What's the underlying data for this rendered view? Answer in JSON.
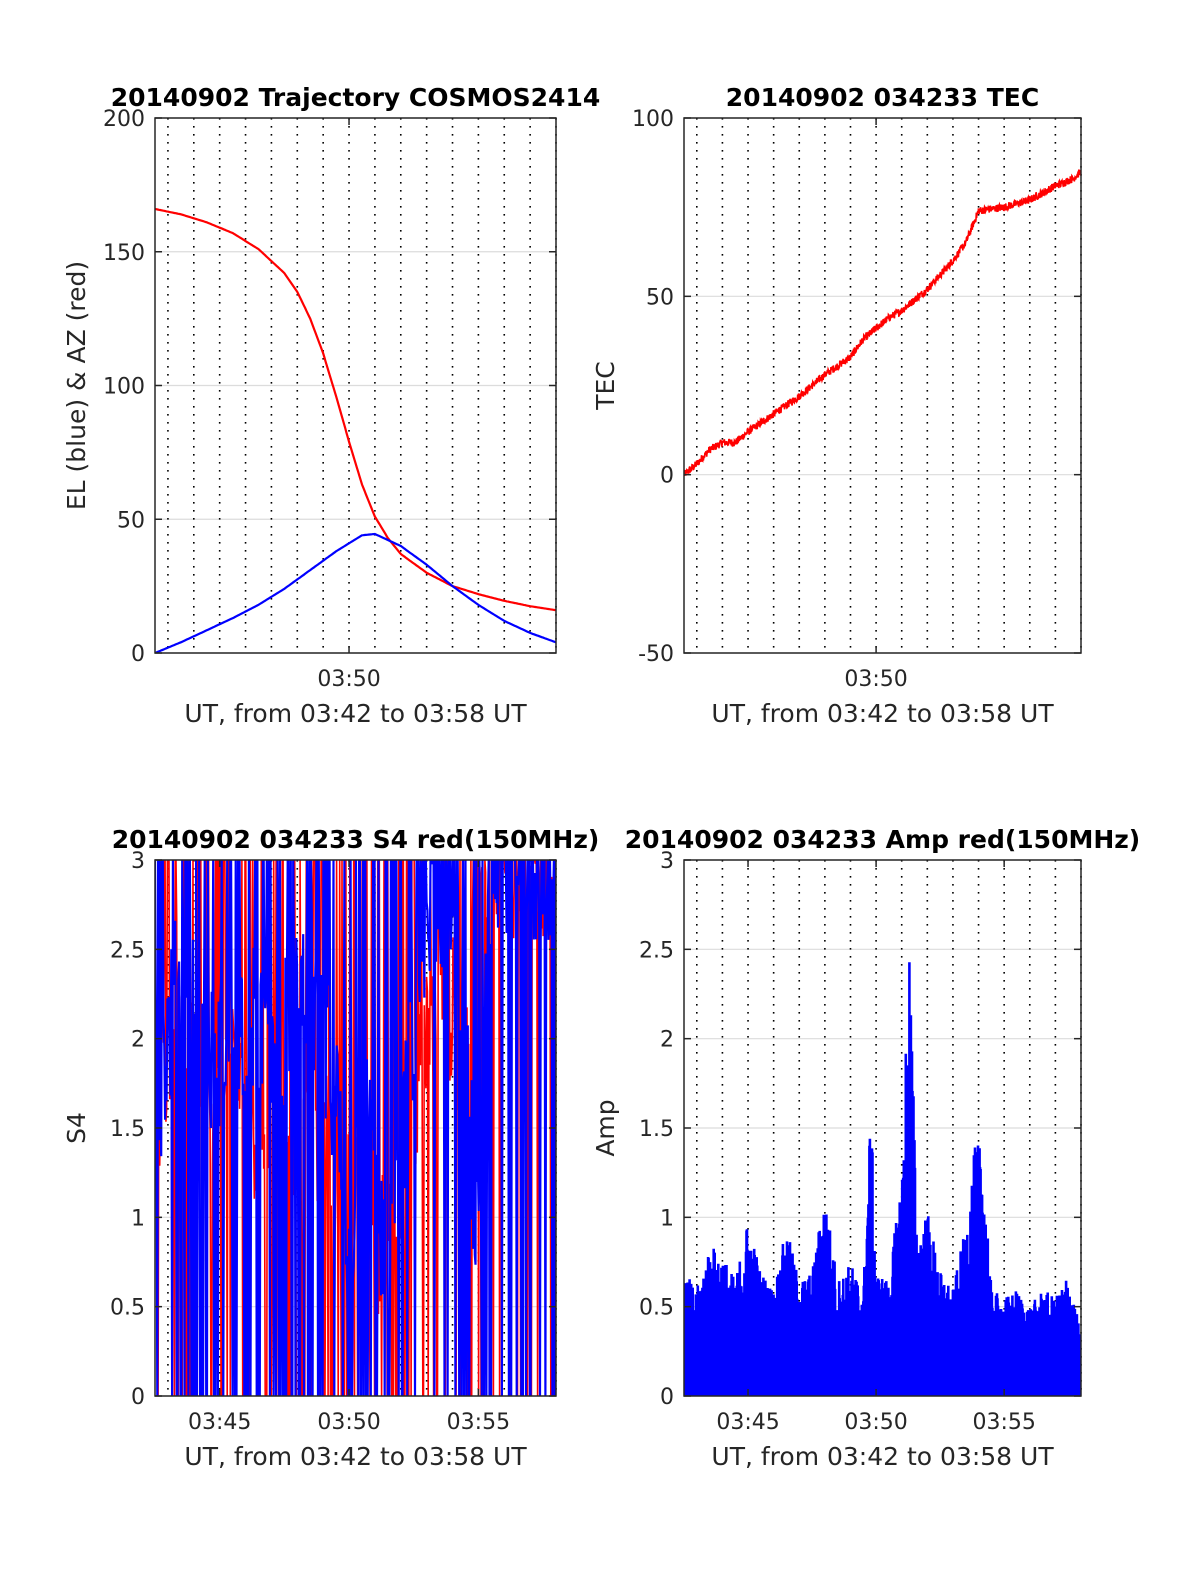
{
  "chart_data": [
    {
      "type": "line",
      "title": "20140902 Trajectory COSMOS2414",
      "xlabel": "UT, from 03:42 to 03:58 UT",
      "ylabel": "EL (blue) & AZ (red)",
      "xlim_minutes": [
        222.5,
        238.0
      ],
      "ylim": [
        0,
        200
      ],
      "yticks": [
        "0",
        "50",
        "100",
        "150",
        "200"
      ],
      "xticks": [
        {
          "t": 230,
          "label": "03:50"
        }
      ],
      "grid": true,
      "series": [
        {
          "color": "#ff0000",
          "x": [
            222.5,
            223.5,
            224.5,
            225.5,
            226.5,
            227.5,
            228.0,
            228.5,
            229.0,
            229.5,
            230.0,
            230.5,
            231.0,
            231.5,
            232.0,
            233.0,
            234.0,
            235.0,
            236.0,
            237.0,
            238.0
          ],
          "y": [
            166,
            164,
            161,
            157,
            151,
            142,
            135,
            125,
            112,
            96,
            79,
            63,
            51,
            43,
            37,
            30,
            25,
            22,
            19.5,
            17.5,
            16
          ]
        },
        {
          "color": "#0000ff",
          "x": [
            222.5,
            223.5,
            224.5,
            225.5,
            226.5,
            227.5,
            228.5,
            229.5,
            230.0,
            230.5,
            231.0,
            232.0,
            233.0,
            234.0,
            235.0,
            236.0,
            237.0,
            238.0
          ],
          "y": [
            0,
            4,
            8.5,
            13,
            18,
            24,
            31,
            38,
            41,
            44,
            44.5,
            40,
            33,
            25,
            18,
            12,
            7.5,
            4
          ]
        }
      ]
    },
    {
      "type": "line",
      "title": "20140902 034233 TEC",
      "xlabel": "UT, from 03:42 to 03:58 UT",
      "ylabel": "TEC",
      "xlim_minutes": [
        222.5,
        238.0
      ],
      "ylim": [
        -50,
        100
      ],
      "yticks": [
        "-50",
        "0",
        "50",
        "100"
      ],
      "xticks": [
        {
          "t": 230,
          "label": "03:50"
        }
      ],
      "grid": true,
      "series": [
        {
          "color": "#ff0000",
          "x": [
            222.5,
            223.0,
            223.5,
            224.0,
            224.5,
            225.0,
            226.0,
            227.0,
            228.0,
            229.0,
            229.5,
            230.0,
            230.5,
            231.0,
            232.0,
            233.0,
            233.5,
            234.0,
            235.0,
            236.0,
            237.0,
            237.7,
            238.0
          ],
          "y": [
            0,
            3,
            7,
            9,
            9,
            12,
            17,
            22,
            28,
            33,
            38,
            41,
            44,
            46,
            52,
            60,
            65,
            74,
            75,
            77,
            81,
            83,
            85
          ]
        }
      ]
    },
    {
      "type": "line",
      "title": "20140902 034233 S4 red(150MHz)",
      "xlabel": "UT, from 03:42 to 03:58 UT",
      "ylabel": "S4",
      "xlim_minutes": [
        222.5,
        238.0
      ],
      "ylim": [
        0,
        3
      ],
      "yticks": [
        "0",
        "0.5",
        "1",
        "1.5",
        "2",
        "2.5",
        "3"
      ],
      "xticks": [
        {
          "t": 225,
          "label": "03:45"
        },
        {
          "t": 230,
          "label": "03:50"
        },
        {
          "t": 235,
          "label": "03:55"
        }
      ],
      "grid": true,
      "series": [
        {
          "color": "#ff0000",
          "x": [
            222.5,
            223.5,
            224.5,
            225.5,
            226.5,
            227.5,
            228.5,
            229.5,
            230.5,
            231.5,
            232.5,
            233.5,
            234.5,
            235.5,
            236.5,
            237.5,
            238.0
          ],
          "y": [
            1.5,
            2.4,
            1.5,
            1.8,
            1.5,
            1.6,
            1.5,
            1.3,
            1.0,
            0.8,
            1.5,
            2.4,
            1.9,
            3.0,
            3.0,
            3.0,
            3.0
          ]
        },
        {
          "color": "#0000ff",
          "x": [
            222.5,
            223.5,
            224.5,
            225.5,
            226.5,
            227.5,
            228.5,
            229.5,
            230.0,
            230.5,
            231.0,
            231.5,
            232.0,
            233.0,
            234.0,
            235.0,
            235.5,
            236.0,
            237.0,
            238.0
          ],
          "y": [
            1.6,
            2.4,
            1.8,
            2.1,
            2.1,
            2.0,
            2.3,
            1.7,
            0.7,
            1.6,
            1.3,
            0.5,
            1.3,
            2.8,
            2.8,
            0.85,
            3.0,
            3.0,
            3.0,
            3.0
          ]
        }
      ]
    },
    {
      "type": "bar",
      "title": "20140902 034233 Amp red(150MHz)",
      "xlabel": "UT, from 03:42 to 03:58 UT",
      "ylabel": "Amp",
      "xlim_minutes": [
        222.5,
        238.0
      ],
      "ylim": [
        0,
        3
      ],
      "yticks": [
        "0",
        "0.5",
        "1",
        "1.5",
        "2",
        "2.5",
        "3"
      ],
      "xticks": [
        {
          "t": 225,
          "label": "03:45"
        },
        {
          "t": 230,
          "label": "03:50"
        },
        {
          "t": 235,
          "label": "03:55"
        }
      ],
      "grid": true,
      "series": [
        {
          "color": "#0000ff",
          "x": [
            222.5,
            223.0,
            223.5,
            224.0,
            224.5,
            225.0,
            225.5,
            226.0,
            226.5,
            227.0,
            227.5,
            228.0,
            228.5,
            229.0,
            229.5,
            229.8,
            230.0,
            230.5,
            231.0,
            231.3,
            231.6,
            232.0,
            232.5,
            233.0,
            233.5,
            233.9,
            234.2,
            234.5,
            235.0,
            235.5,
            236.0,
            236.5,
            237.0,
            237.5,
            238.0
          ],
          "y": [
            0.7,
            0.6,
            0.85,
            0.8,
            0.65,
            1.0,
            0.7,
            0.6,
            0.95,
            0.65,
            0.7,
            1.15,
            0.65,
            0.75,
            0.6,
            1.65,
            0.7,
            0.65,
            1.25,
            2.63,
            0.9,
            1.05,
            0.7,
            0.6,
            0.95,
            1.45,
            1.35,
            0.6,
            0.55,
            0.6,
            0.5,
            0.6,
            0.55,
            0.7,
            0.35
          ]
        }
      ]
    }
  ]
}
